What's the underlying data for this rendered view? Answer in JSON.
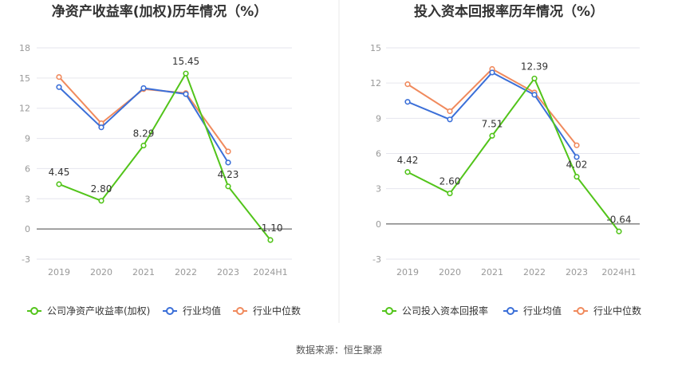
{
  "chart_data": [
    {
      "type": "line",
      "title": "净资产收益率(加权)历年情况（%）",
      "categories": [
        "2019",
        "2020",
        "2021",
        "2022",
        "2023",
        "2024H1"
      ],
      "ylim": [
        -3,
        18
      ],
      "yticks": [
        -3,
        0,
        3,
        6,
        9,
        12,
        15,
        18
      ],
      "grid": true,
      "legend_position": "bottom",
      "series": [
        {
          "name": "公司净资产收益率(加权)",
          "color": "#52c41a",
          "values": [
            4.45,
            2.8,
            8.29,
            15.45,
            4.23,
            -1.1
          ],
          "labels": [
            "4.45",
            "2.80",
            "8.29",
            "15.45",
            "4.23",
            "-1.10"
          ]
        },
        {
          "name": "行业均值",
          "color": "#3b6fd8",
          "values": [
            14.1,
            10.1,
            14.0,
            13.4,
            6.6,
            null
          ]
        },
        {
          "name": "行业中位数",
          "color": "#f08a5d",
          "values": [
            15.1,
            10.5,
            13.9,
            13.5,
            7.7,
            null
          ]
        }
      ]
    },
    {
      "type": "line",
      "title": "投入资本回报率历年情况（%）",
      "categories": [
        "2019",
        "2020",
        "2021",
        "2022",
        "2023",
        "2024H1"
      ],
      "ylim": [
        -3,
        15
      ],
      "yticks": [
        -3,
        0,
        3,
        6,
        9,
        12,
        15
      ],
      "grid": true,
      "legend_position": "bottom",
      "series": [
        {
          "name": "公司投入资本回报率",
          "color": "#52c41a",
          "values": [
            4.42,
            2.6,
            7.51,
            12.39,
            4.02,
            -0.64
          ],
          "labels": [
            "4.42",
            "2.60",
            "7.51",
            "12.39",
            "4.02",
            "-0.64"
          ]
        },
        {
          "name": "行业均值",
          "color": "#3b6fd8",
          "values": [
            10.4,
            8.9,
            12.9,
            11.0,
            5.7,
            null
          ]
        },
        {
          "name": "行业中位数",
          "color": "#f08a5d",
          "values": [
            11.9,
            9.6,
            13.2,
            11.2,
            6.7,
            null
          ]
        }
      ]
    }
  ],
  "source": "数据来源：恒生聚源"
}
